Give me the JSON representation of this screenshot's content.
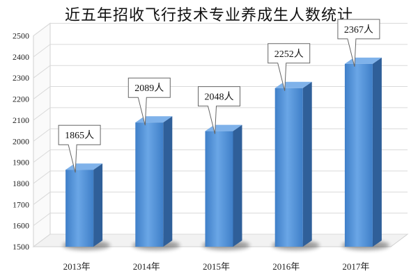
{
  "chart_data": {
    "type": "bar",
    "title": "近五年招收飞行技术专业养成生人数统计",
    "xlabel": "",
    "ylabel": "",
    "categories": [
      "2013年",
      "2014年",
      "2015年",
      "2016年",
      "2017年"
    ],
    "values": [
      1865,
      2089,
      2048,
      2252,
      2367
    ],
    "data_labels": [
      "1865人",
      "2089人",
      "2048人",
      "2252人",
      "2367人"
    ],
    "ylim": [
      1500,
      2500
    ],
    "yticks": [
      "1500",
      "1600",
      "1700",
      "1800",
      "1900",
      "2000",
      "2100",
      "2200",
      "2300",
      "2400",
      "2500"
    ],
    "grid": true,
    "style": "3d-column",
    "colors": {
      "bar_front": "#4f8ed6",
      "bar_side": "#2f5f99",
      "bar_top": "#7fb2ea",
      "grid": "#d9d9d9"
    }
  }
}
